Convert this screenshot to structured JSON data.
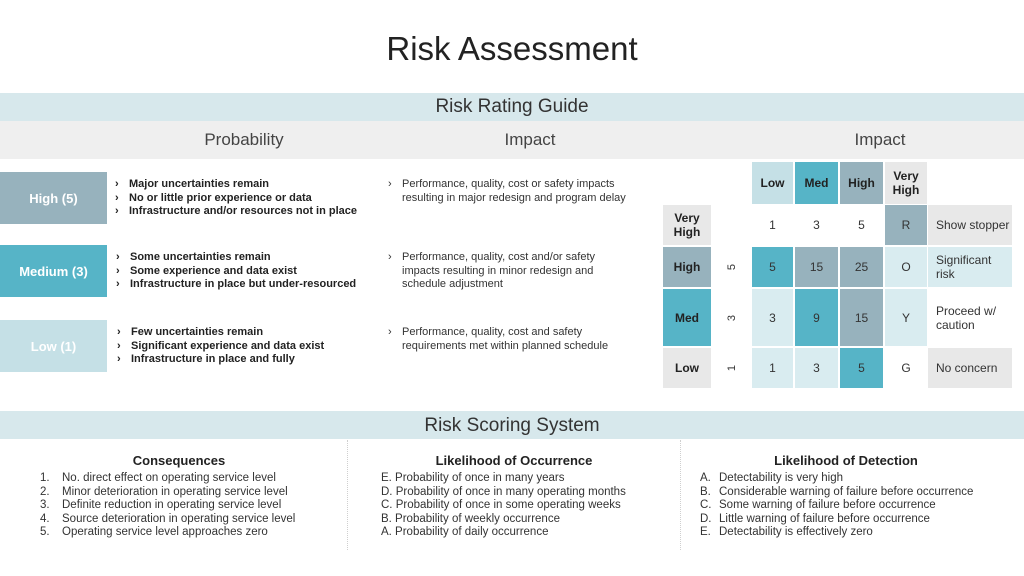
{
  "title": "Risk Assessment",
  "guide_bar": "Risk Rating Guide",
  "columns": {
    "probability": "Probability",
    "impact_left": "Impact",
    "impact_right": "Impact"
  },
  "probability_levels": [
    {
      "label": "High (5)",
      "color": "#97b2bd",
      "items": [
        "Major uncertainties remain",
        "No or little prior experience or data",
        "Infrastructure and/or resources not in place"
      ],
      "impact": [
        "Performance, quality, cost or safety impacts",
        "resulting in major redesign and program delay"
      ]
    },
    {
      "label": "Medium (3)",
      "color": "#56b4c7",
      "items": [
        "Some uncertainties remain",
        "Some experience and data exist",
        "Infrastructure in place but under-resourced"
      ],
      "impact": [
        "Performance, quality, cost and/or safety",
        "impacts resulting in minor redesign and",
        "schedule adjustment"
      ]
    },
    {
      "label": "Low (1)",
      "color": "#c5e0e6",
      "items": [
        "Few uncertainties remain",
        "Significant experience and data exist",
        "Infrastructure in place and fully"
      ],
      "impact": [
        "Performance, quality, cost and safety",
        "requirements met within planned schedule"
      ]
    }
  ],
  "matrix": {
    "col_headers": [
      "Low",
      "Med",
      "High",
      "Very High"
    ],
    "rows": [
      {
        "label": "Very High",
        "num": "",
        "values": [
          "1",
          "3",
          "5",
          "R"
        ],
        "desc": "Show stopper"
      },
      {
        "label": "High",
        "num": "5",
        "values": [
          "5",
          "15",
          "25",
          "O"
        ],
        "desc": "Significant risk"
      },
      {
        "label": "Med",
        "num": "3",
        "values": [
          "3",
          "9",
          "15",
          "Y"
        ],
        "desc": "Proceed w/ caution"
      },
      {
        "label": "Low",
        "num": "1",
        "values": [
          "1",
          "3",
          "5",
          "G"
        ],
        "desc": "No concern"
      }
    ]
  },
  "scoring_bar": "Risk Scoring System",
  "consequences": {
    "heading": "Consequences",
    "markers": [
      "1.",
      "2.",
      "3.",
      "4.",
      "5."
    ],
    "items": [
      "No. direct effect on operating service level",
      "Minor deterioration in operating service level",
      "Definite reduction in operating service level",
      "Source deterioration in operating service level",
      "Operating service level approaches zero"
    ]
  },
  "occurrence": {
    "heading": "Likelihood of Occurrence",
    "items": [
      "E. Probability of once in many years",
      "D. Probability of once in many operating months",
      "C. Probability of once in some operating weeks",
      "B. Probability of weekly occurrence",
      "A. Probability of daily occurrence"
    ]
  },
  "detection": {
    "heading": "Likelihood of Detection",
    "markers": [
      "A.",
      "B.",
      "C.",
      "D.",
      "E."
    ],
    "items": [
      "Detectability is very high",
      "Considerable warning of failure before occurrence",
      "Some warning of failure before occurrence",
      "Little warning of failure before occurrence",
      "Detectability is effectively zero"
    ]
  },
  "colors": {
    "bar": "#d7e8ec",
    "subbar": "#efefef",
    "dark": "#97b2bd",
    "teal": "#56b4c7",
    "light": "#c5e0e6",
    "pale": "#d9ecf0",
    "gray": "#e8e8e8"
  }
}
